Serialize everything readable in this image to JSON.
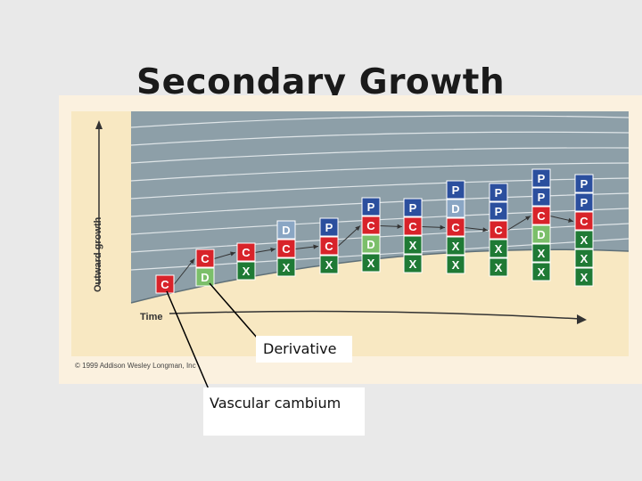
{
  "slide": {
    "title": "Secondary Growth"
  },
  "figure": {
    "y_axis_label": "Outward growth",
    "x_axis_label": "Time",
    "copyright": "© 1999 Addison Wesley Longman, Inc",
    "cell_colors": {
      "C": "#d8232a",
      "D": "#7bbf6a",
      "X": "#1f7a35",
      "P": "#2b4f9e",
      "D_upper": "#8aa6c4"
    },
    "background_colors": {
      "bark": "#8d9fa8",
      "wood": "#f8e8c2",
      "frame": "#fbf1df"
    },
    "columns": [
      {
        "cells": [
          "C"
        ]
      },
      {
        "cells": [
          "D",
          "C"
        ]
      },
      {
        "cells": [
          "X",
          "C"
        ]
      },
      {
        "cells": [
          "X",
          "C",
          "D"
        ]
      },
      {
        "cells": [
          "X",
          "C",
          "P"
        ]
      },
      {
        "cells": [
          "X",
          "D",
          "C",
          "P"
        ]
      },
      {
        "cells": [
          "X",
          "X",
          "C",
          "P"
        ]
      },
      {
        "cells": [
          "X",
          "X",
          "C",
          "D",
          "P"
        ]
      },
      {
        "cells": [
          "X",
          "X",
          "C",
          "P",
          "P"
        ]
      },
      {
        "cells": [
          "X",
          "X",
          "D",
          "C",
          "P",
          "P"
        ]
      },
      {
        "cells": [
          "X",
          "X",
          "X",
          "C",
          "P",
          "P"
        ]
      }
    ]
  },
  "labels": {
    "derivative": "Derivative",
    "vascular_cambium": "Vascular cambium"
  }
}
